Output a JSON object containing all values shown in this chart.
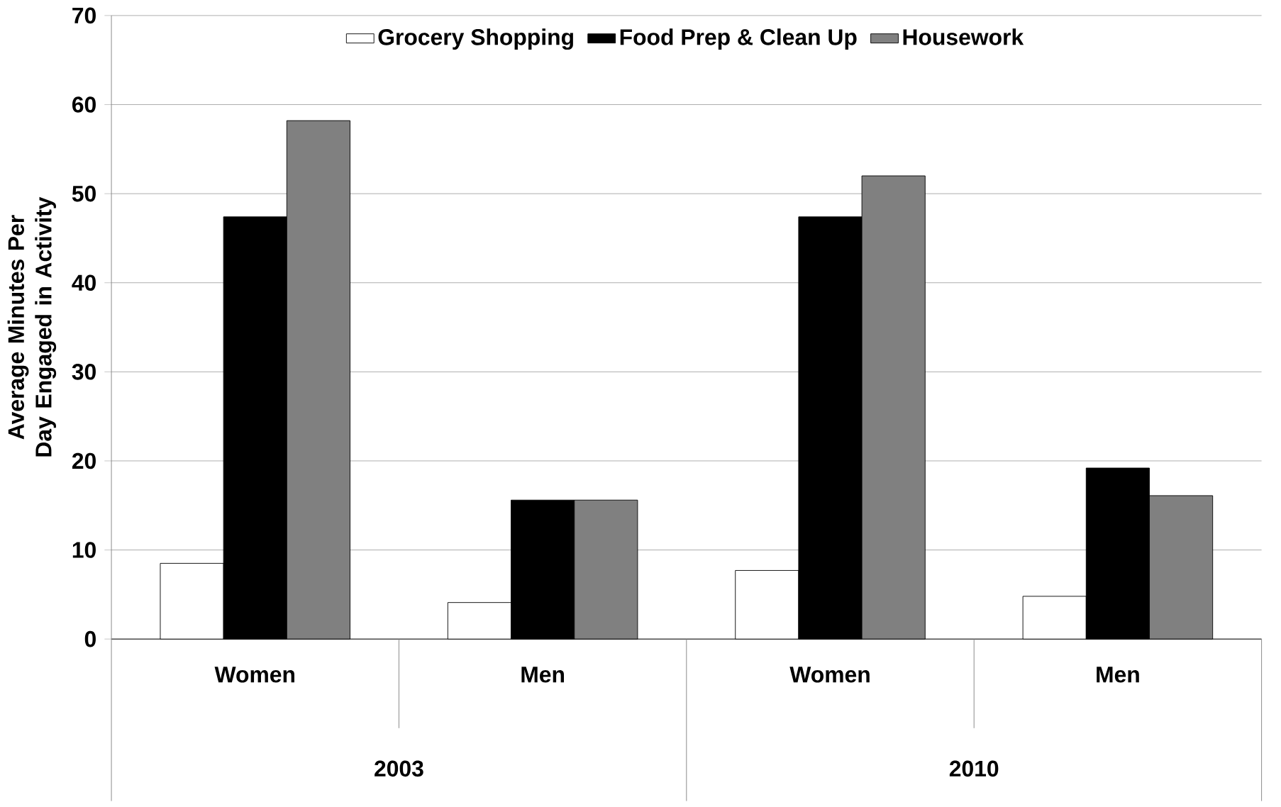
{
  "chart_data": {
    "type": "bar",
    "categories": [
      "Women",
      "Men",
      "Women",
      "Men"
    ],
    "annotations": [
      "2003",
      "2010"
    ],
    "ylabel": "Average Minutes Per Day Engaged in Activity",
    "series": [
      {
        "name": "Grocery Shopping",
        "color": "#ffffff",
        "values": [
          8.5,
          4.1,
          7.7,
          4.8
        ]
      },
      {
        "name": "Food Prep & Clean Up",
        "color": "#000000",
        "values": [
          47.4,
          15.6,
          47.4,
          19.2
        ]
      },
      {
        "name": "Housework",
        "color": "#808080",
        "values": [
          58.2,
          15.6,
          52.0,
          16.1
        ]
      }
    ],
    "ylim": [
      0,
      70
    ],
    "yticks": [
      0,
      10,
      20,
      30,
      40,
      50,
      60,
      70
    ],
    "grid": "y",
    "legend": "top"
  }
}
